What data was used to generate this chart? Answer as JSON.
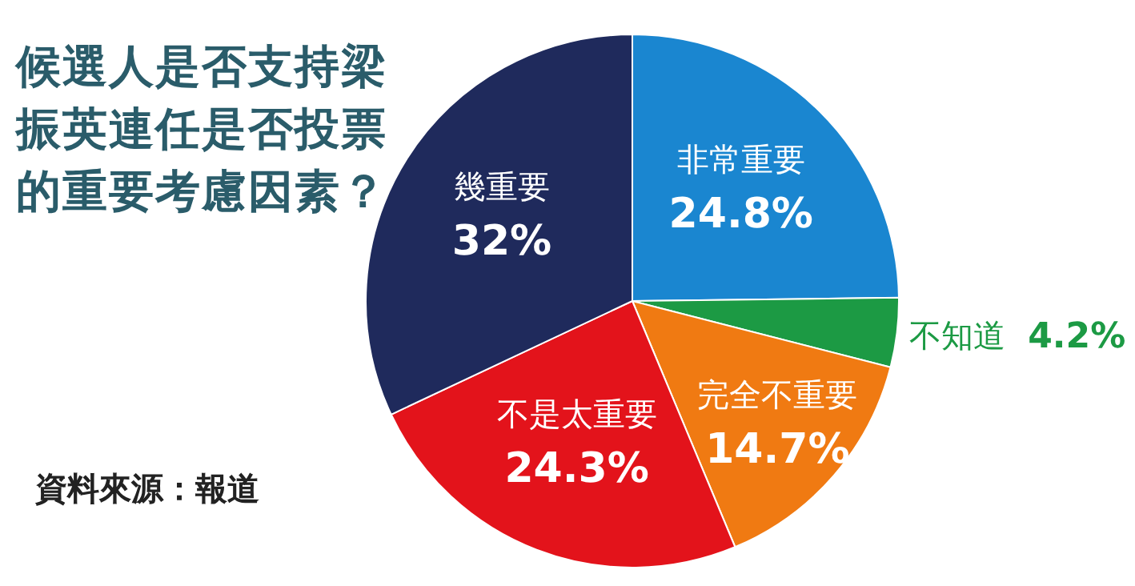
{
  "chart_data": {
    "type": "pie",
    "title": "候選人是否支持梁振英連任是否投票的重要考慮因素？",
    "categories": [
      "非常重要",
      "不知道",
      "完全不重要",
      "不是太重要",
      "幾重要"
    ],
    "values": [
      24.8,
      4.2,
      14.7,
      24.3,
      32
    ],
    "value_labels": [
      "24.8%",
      "4.2%",
      "14.7%",
      "24.3%",
      "32%"
    ],
    "colors": [
      "#1a86d0",
      "#1c9a44",
      "#f07a12",
      "#e3131b",
      "#1f2a5c"
    ],
    "legend": false,
    "annotations": [
      "資料來源：報道"
    ]
  }
}
